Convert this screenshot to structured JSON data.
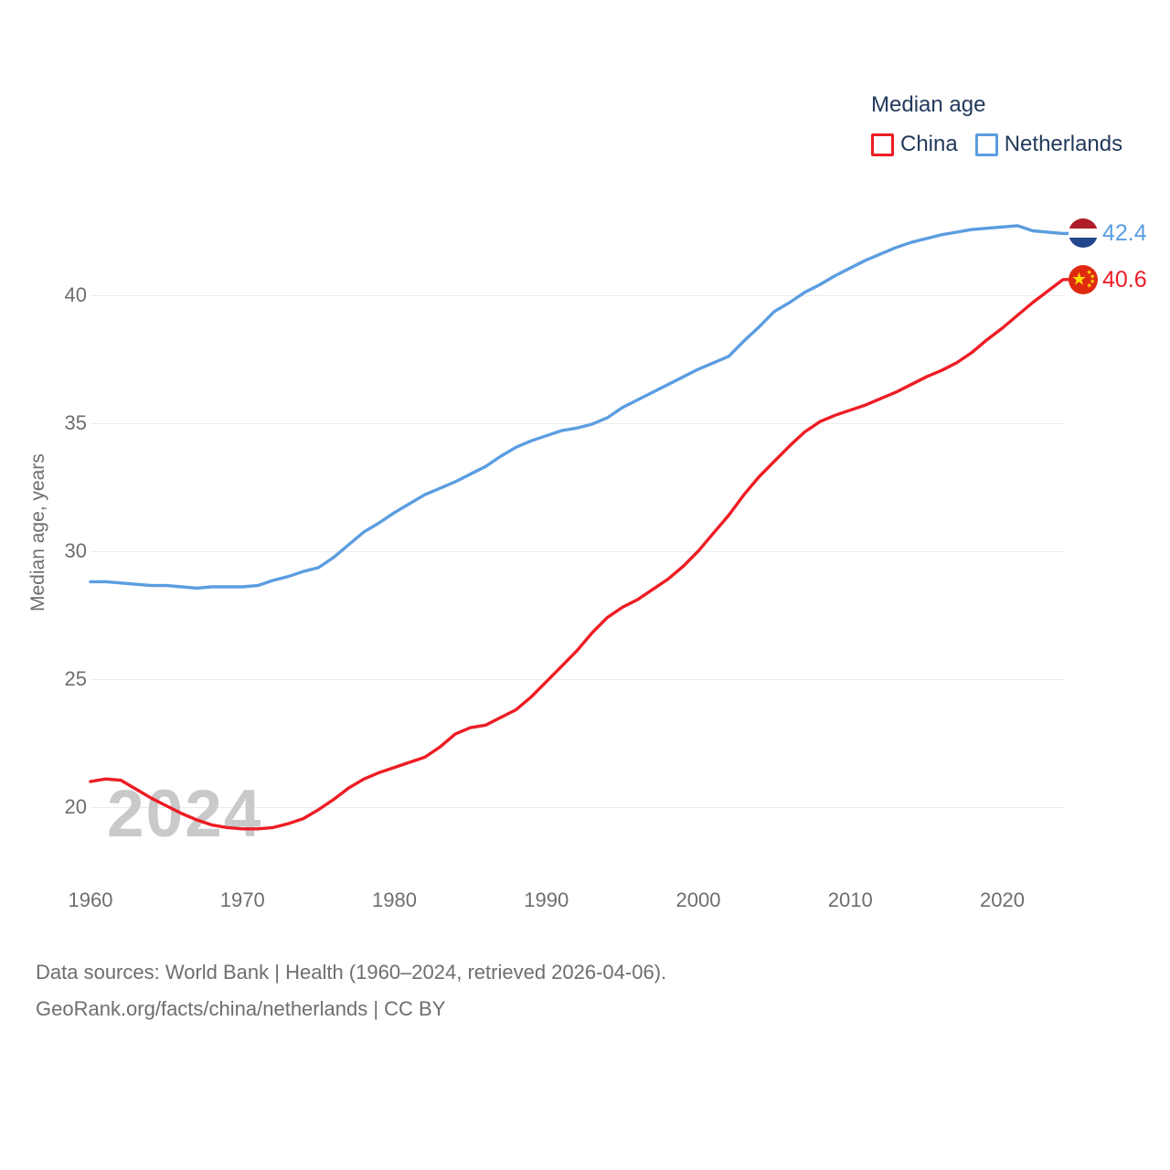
{
  "legend": {
    "title": "Median age",
    "items": [
      {
        "label": "China",
        "color": "#ed1c24"
      },
      {
        "label": "Netherlands",
        "color": "#5b9de0"
      }
    ]
  },
  "end_labels": [
    {
      "country": "Netherlands",
      "value": "42.4",
      "color": "#5b9de0",
      "flag": "netherlands-flag"
    },
    {
      "country": "China",
      "value": "40.6",
      "color": "#ed1c24",
      "flag": "china-flag"
    }
  ],
  "watermark": "2024",
  "footer": {
    "line1": "Data sources: World Bank | Health (1960–2024, retrieved 2026-04-06).",
    "line2": "GeoRank.org/facts/china/netherlands | CC BY"
  },
  "flag_colors": {
    "netherlands": {
      "top": "#ae1c28",
      "middle": "#ffffff",
      "bottom": "#21468b"
    },
    "china": {
      "background": "#de2910",
      "stars": "#ffde00"
    }
  },
  "chart_data": {
    "type": "line",
    "title": "Median age",
    "xlabel": "",
    "ylabel": "Median age, years",
    "legend_position": "top-right",
    "grid": "horizontal",
    "x_range": [
      1960,
      2024
    ],
    "ylim": [
      18.5,
      43.5
    ],
    "xticks": [
      1960,
      1970,
      1980,
      1990,
      2000,
      2010,
      2020
    ],
    "yticks": [
      20,
      25,
      30,
      35,
      40
    ],
    "x": [
      1960,
      1961,
      1962,
      1963,
      1964,
      1965,
      1966,
      1967,
      1968,
      1969,
      1970,
      1971,
      1972,
      1973,
      1974,
      1975,
      1976,
      1977,
      1978,
      1979,
      1980,
      1981,
      1982,
      1983,
      1984,
      1985,
      1986,
      1987,
      1988,
      1989,
      1990,
      1991,
      1992,
      1993,
      1994,
      1995,
      1996,
      1997,
      1998,
      1999,
      2000,
      2001,
      2002,
      2003,
      2004,
      2005,
      2006,
      2007,
      2008,
      2009,
      2010,
      2011,
      2012,
      2013,
      2014,
      2015,
      2016,
      2017,
      2018,
      2019,
      2020,
      2021,
      2022,
      2023,
      2024
    ],
    "series": [
      {
        "name": "Netherlands",
        "color": "#5b9de0",
        "end_value": 42.4,
        "values": [
          28.8,
          28.8,
          28.75,
          28.7,
          28.65,
          28.65,
          28.6,
          28.55,
          28.6,
          28.6,
          28.6,
          28.65,
          28.85,
          29.0,
          29.2,
          29.35,
          29.75,
          30.25,
          30.75,
          31.1,
          31.5,
          31.85,
          32.2,
          32.45,
          32.7,
          33.0,
          33.3,
          33.7,
          34.05,
          34.3,
          34.5,
          34.7,
          34.8,
          34.95,
          35.2,
          35.6,
          35.9,
          36.2,
          36.5,
          36.8,
          37.1,
          37.35,
          37.6,
          38.2,
          38.75,
          39.35,
          39.7,
          40.1,
          40.4,
          40.75,
          41.05,
          41.35,
          41.6,
          41.85,
          42.05,
          42.2,
          42.35,
          42.45,
          42.55,
          42.6,
          42.65,
          42.7,
          42.5,
          42.45,
          42.4
        ]
      },
      {
        "name": "China",
        "color": "#ed1c24",
        "end_value": 40.6,
        "values": [
          21.0,
          21.1,
          21.05,
          20.7,
          20.35,
          20.05,
          19.75,
          19.5,
          19.3,
          19.2,
          19.15,
          19.15,
          19.2,
          19.35,
          19.55,
          19.9,
          20.3,
          20.75,
          21.1,
          21.35,
          21.55,
          21.75,
          21.95,
          22.35,
          22.85,
          23.1,
          23.2,
          23.5,
          23.8,
          24.3,
          24.9,
          25.5,
          26.1,
          26.8,
          27.4,
          27.8,
          28.1,
          28.5,
          28.9,
          29.4,
          30.0,
          30.7,
          31.4,
          32.2,
          32.9,
          33.5,
          34.1,
          34.65,
          35.05,
          35.3,
          35.5,
          35.7,
          35.95,
          36.2,
          36.5,
          36.8,
          37.05,
          37.35,
          37.75,
          38.25,
          38.7,
          39.2,
          39.7,
          40.15,
          40.6
        ]
      }
    ]
  }
}
